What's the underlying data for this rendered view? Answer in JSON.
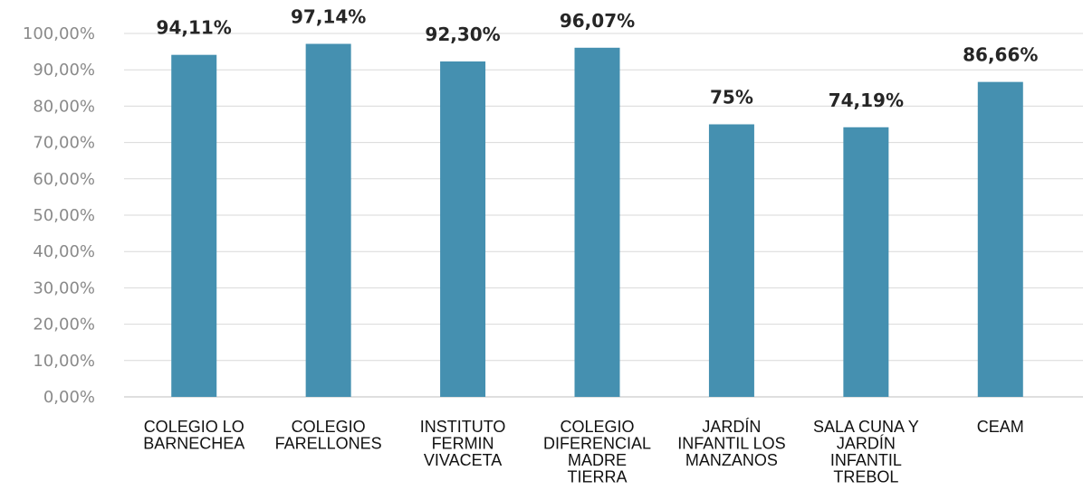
{
  "chart_data": {
    "type": "bar",
    "categories": [
      [
        "COLEGIO LO",
        "BARNECHEA"
      ],
      [
        "COLEGIO",
        "FARELLONES"
      ],
      [
        "INSTITUTO",
        "FERMIN",
        "VIVACETA"
      ],
      [
        "COLEGIO",
        "DIFERENCIAL",
        "MADRE",
        "TIERRA"
      ],
      [
        "JARDÍN",
        "INFANTIL LOS",
        "MANZANOS"
      ],
      [
        "SALA CUNA Y",
        "JARDÍN",
        "INFANTIL",
        "TREBOL"
      ],
      [
        "CEAM"
      ]
    ],
    "values": [
      94.11,
      97.14,
      92.3,
      96.07,
      75,
      74.19,
      86.66
    ],
    "data_labels": [
      "94,11%",
      "97,14%",
      "92,30%",
      "96,07%",
      "75%",
      "74,19%",
      "86,66%"
    ],
    "y_ticks": [
      0,
      10,
      20,
      30,
      40,
      50,
      60,
      70,
      80,
      90,
      100
    ],
    "y_tick_labels": [
      "0,00%",
      "10,00%",
      "20,00%",
      "30,00%",
      "40,00%",
      "50,00%",
      "60,00%",
      "70,00%",
      "80,00%",
      "90,00%",
      "100,00%"
    ],
    "ylim": [
      0,
      100
    ],
    "title": "",
    "xlabel": "",
    "ylabel": "",
    "grid": true,
    "legend": "none",
    "colors": {
      "bar": "#4590b0",
      "grid": "#d9d9d9",
      "tick_text": "#8a8a8a",
      "data_label_text": "#262626",
      "category_text": "#111111"
    }
  }
}
